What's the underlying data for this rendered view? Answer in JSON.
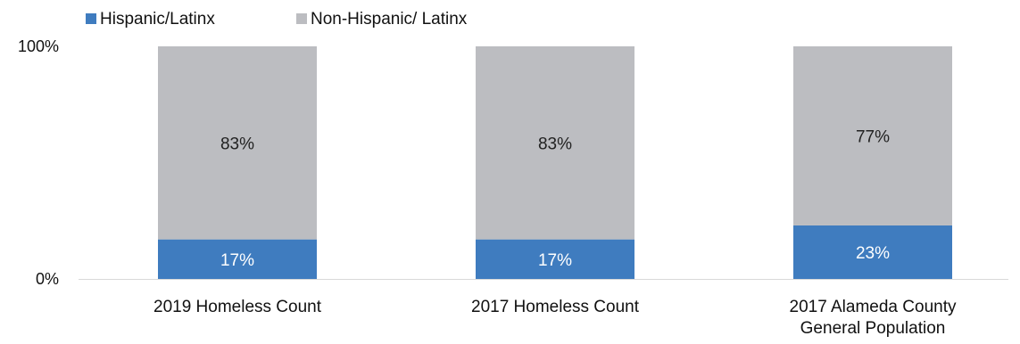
{
  "chart_data": {
    "type": "bar",
    "stacked": true,
    "normalized": true,
    "title": "",
    "xlabel": "",
    "ylabel": "",
    "ylim": [
      0,
      100
    ],
    "y_ticks": [
      "0%",
      "100%"
    ],
    "grid": false,
    "legend_position": "top-left",
    "categories": [
      [
        "2019 Homeless Count"
      ],
      [
        "2017 Homeless Count"
      ],
      [
        "2017 Alameda County",
        "General Population"
      ]
    ],
    "series": [
      {
        "name": "Hispanic/Latinx",
        "color": "#3f7cbf",
        "label_color": "#ffffff",
        "values": [
          17,
          17,
          23
        ],
        "labels": [
          "17%",
          "17%",
          "23%"
        ]
      },
      {
        "name": "Non-Hispanic/ Latinx",
        "color": "#bcbdc1",
        "label_color": "#222222",
        "values": [
          83,
          83,
          77
        ],
        "labels": [
          "83%",
          "83%",
          "77%"
        ]
      }
    ]
  }
}
